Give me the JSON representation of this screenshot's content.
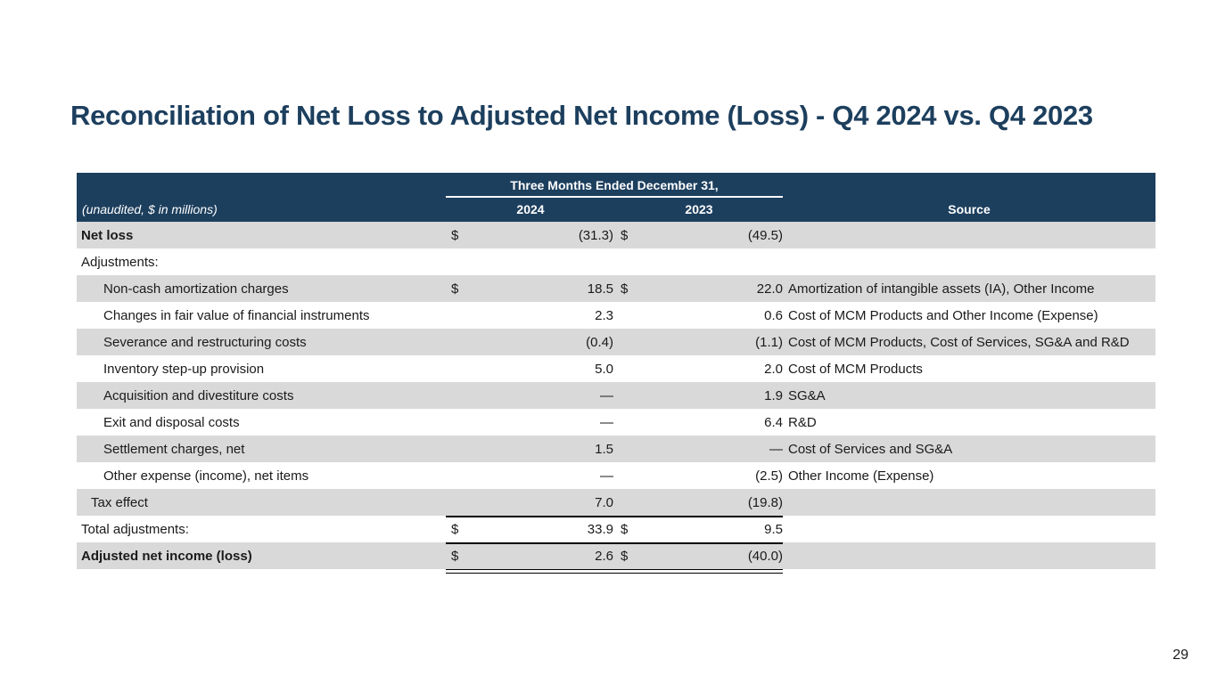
{
  "title": "Reconciliation of Net Loss to Adjusted Net Income (Loss) - Q4 2024 vs. Q4 2023",
  "header": {
    "units": "(unaudited, $ in millions)",
    "period": "Three Months Ended December 31,",
    "year1": "2024",
    "year2": "2023",
    "source": "Source"
  },
  "rows": {
    "net_loss": {
      "label": "Net loss",
      "d1": "$",
      "v1": "(31.3)",
      "d2": "$",
      "v2": "(49.5)",
      "source": ""
    },
    "adjustments": {
      "label": "Adjustments:"
    },
    "noncash": {
      "label": "Non-cash amortization charges",
      "d1": "$",
      "v1": "18.5",
      "d2": "$",
      "v2": "22.0",
      "source": "Amortization of intangible assets (IA), Other Income"
    },
    "fair_value": {
      "label": "Changes in fair value of financial instruments",
      "v1": "2.3",
      "v2": "0.6",
      "source": "Cost of MCM Products and Other Income (Expense)"
    },
    "severance": {
      "label": "Severance and restructuring costs",
      "v1": "(0.4)",
      "v2": "(1.1)",
      "source": "Cost of MCM Products, Cost of Services, SG&A and R&D"
    },
    "inventory": {
      "label": "Inventory step-up provision",
      "v1": "5.0",
      "v2": "2.0",
      "source": "Cost of MCM Products"
    },
    "acquisition": {
      "label": "Acquisition and divestiture costs",
      "v1": "—",
      "v2": "1.9",
      "source": "SG&A"
    },
    "exit": {
      "label": "Exit and disposal costs",
      "v1": "—",
      "v2": "6.4",
      "source": "R&D"
    },
    "settlement": {
      "label": "Settlement charges, net",
      "v1": "1.5",
      "v2": "—",
      "source": "Cost of Services and SG&A"
    },
    "other": {
      "label": "Other expense (income), net items",
      "v1": "—",
      "v2": "(2.5)",
      "source": "Other Income (Expense)"
    },
    "tax": {
      "label": "Tax effect",
      "v1": "7.0",
      "v2": "(19.8)"
    },
    "total": {
      "label": "Total adjustments:",
      "d1": "$",
      "v1": "33.9",
      "d2": "$",
      "v2": "9.5"
    },
    "adjusted": {
      "label": "Adjusted net income (loss)",
      "d1": "$",
      "v1": "2.6",
      "d2": "$",
      "v2": "(40.0)"
    }
  },
  "page_number": "29"
}
